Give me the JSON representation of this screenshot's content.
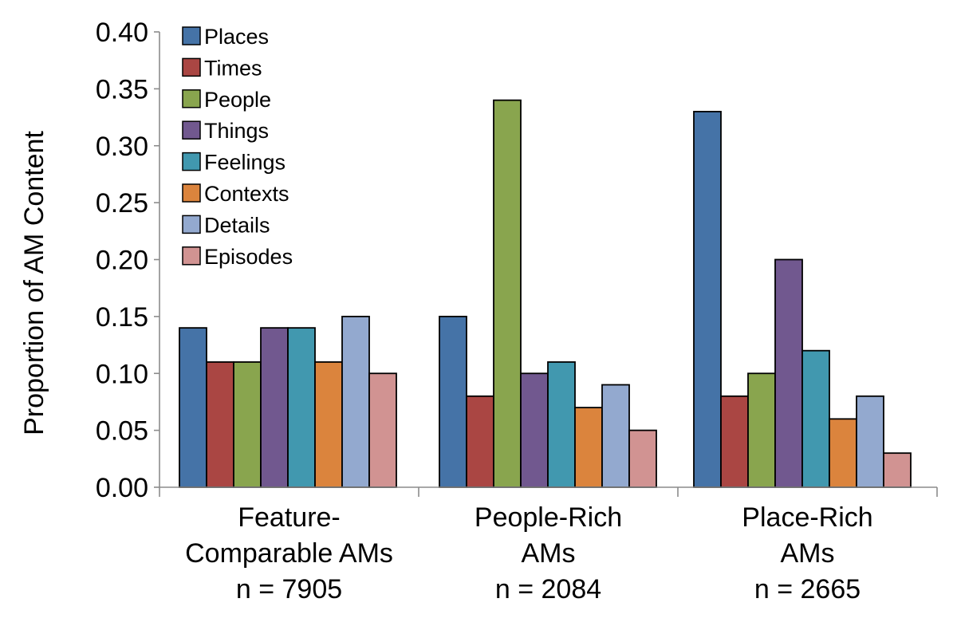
{
  "chart_data": {
    "type": "bar",
    "ylabel": "Proportion of AM Content",
    "xlabel": "",
    "ylim": [
      0,
      0.4
    ],
    "yticks": [
      "0.00",
      "0.05",
      "0.10",
      "0.15",
      "0.20",
      "0.25",
      "0.30",
      "0.35",
      "0.40"
    ],
    "grid": false,
    "legend_position": "top-left",
    "categories": [
      [
        "Feature-",
        "Comparable AMs",
        "n = 7905"
      ],
      [
        "People-Rich",
        "AMs",
        "n = 2084"
      ],
      [
        "Place-Rich",
        "AMs",
        "n = 2665"
      ]
    ],
    "series": [
      {
        "name": "Places",
        "color": "#4573a7",
        "values": [
          0.14,
          0.15,
          0.33
        ]
      },
      {
        "name": "Times",
        "color": "#aa4643",
        "values": [
          0.11,
          0.08,
          0.08
        ]
      },
      {
        "name": "People",
        "color": "#89a54e",
        "values": [
          0.11,
          0.34,
          0.1
        ]
      },
      {
        "name": "Things",
        "color": "#71588f",
        "values": [
          0.14,
          0.1,
          0.2
        ]
      },
      {
        "name": "Feelings",
        "color": "#4198af",
        "values": [
          0.14,
          0.11,
          0.12
        ]
      },
      {
        "name": "Contexts",
        "color": "#db843d",
        "values": [
          0.11,
          0.07,
          0.06
        ]
      },
      {
        "name": "Details",
        "color": "#93a9cf",
        "values": [
          0.15,
          0.09,
          0.08
        ]
      },
      {
        "name": "Episodes",
        "color": "#d19392",
        "values": [
          0.1,
          0.05,
          0.03
        ]
      }
    ]
  }
}
